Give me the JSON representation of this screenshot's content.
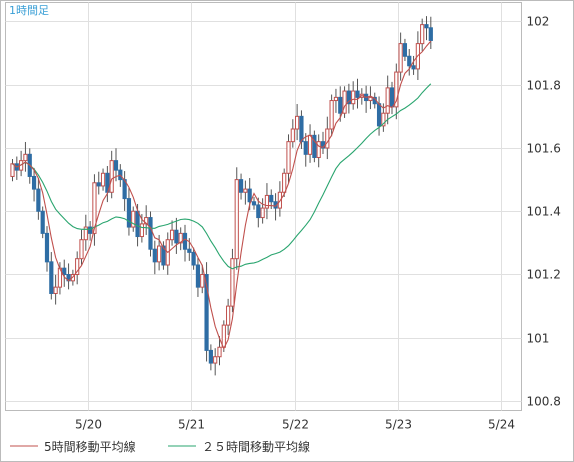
{
  "chart_data": {
    "type": "candlestick",
    "title": "1時間足",
    "x_tick_labels": [
      "5/20",
      "5/21",
      "5/22",
      "5/23",
      "5/24"
    ],
    "y_ticks": [
      100.8,
      101,
      101.2,
      101.4,
      101.6,
      101.8,
      102
    ],
    "y_tick_labels": [
      "100.8",
      "101",
      "101.2",
      "101.4",
      "101.6",
      "101.8",
      "102"
    ],
    "ylim": [
      100.77,
      102.06
    ],
    "grid": true,
    "legend_position": "bottom",
    "legend": [
      {
        "label": "5時間移動平均線",
        "color": "#c0504d"
      },
      {
        "label": "２５時間移動平均線",
        "color": "#2aa56f"
      }
    ],
    "colors": {
      "up_candle": "#c0504d",
      "down_candle": "#2e6da4",
      "ma5": "#c0504d",
      "ma25": "#2aa56f",
      "grid": "#e0e0e0",
      "frame": "#bbbbbb",
      "title": "#3a9fd6"
    },
    "closes": [
      101.55,
      101.53,
      101.56,
      101.58,
      101.51,
      101.47,
      101.4,
      101.33,
      101.24,
      101.14,
      101.16,
      101.22,
      101.2,
      101.18,
      101.2,
      101.25,
      101.31,
      101.35,
      101.33,
      101.49,
      101.48,
      101.52,
      101.46,
      101.56,
      101.53,
      101.5,
      101.44,
      101.35,
      101.4,
      101.32,
      101.36,
      101.38,
      101.28,
      101.24,
      101.29,
      101.23,
      101.31,
      101.34,
      101.3,
      101.33,
      101.28,
      101.27,
      101.23,
      101.16,
      101.2,
      100.96,
      100.92,
      100.94,
      100.97,
      101.04,
      101.1,
      101.25,
      101.5,
      101.46,
      101.47,
      101.43,
      101.42,
      101.38,
      101.41,
      101.45,
      101.43,
      101.41,
      101.46,
      101.52,
      101.62,
      101.66,
      101.7,
      101.62,
      101.58,
      101.64,
      101.57,
      101.62,
      101.6,
      101.66,
      101.75,
      101.76,
      101.71,
      101.78,
      101.74,
      101.78,
      101.76,
      101.77,
      101.75,
      101.76,
      101.74,
      101.67,
      101.71,
      101.79,
      101.73,
      101.84,
      101.93,
      101.89,
      101.86,
      101.85,
      101.93,
      101.99,
      101.98,
      101.94
    ]
  },
  "legend": {
    "ma5_label": "5時間移動平均線",
    "ma25_label": "２５時間移動平均線"
  }
}
